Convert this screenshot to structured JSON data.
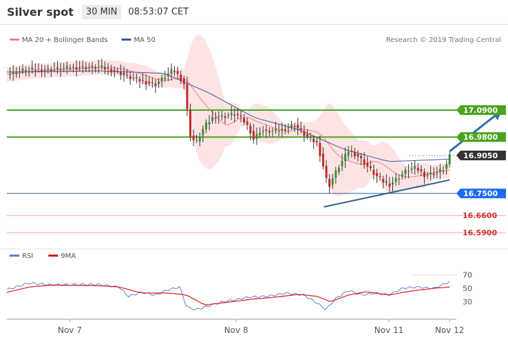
{
  "header": {
    "title": "Silver spot",
    "timeframe": "30 MIN",
    "time": "08:53:07 CET"
  },
  "source_note": "Research © 2019 Trading Central",
  "colors": {
    "ma20": "#f08080",
    "ma50": "#3b5998",
    "bollinger_fill": "#fde3e3",
    "candle_up": "#3a8f3a",
    "candle_down": "#c62828",
    "resistance": "#4aa31e",
    "support": "#2f5f8a",
    "target_line": "#f0a0a0",
    "arrow": "#2f6db5",
    "pivot_badge": "#1e6bf0",
    "current_badge": "#333333",
    "rsi": "#5b7fd6",
    "rsi_ma": "#d81b1b"
  },
  "chart_data": [
    {
      "type": "candlestick",
      "legend": [
        {
          "name": "MA 20 + Bollinger Bands",
          "color": "#f08080"
        },
        {
          "name": "MA 50",
          "color": "#3b5998"
        }
      ],
      "x_labels": [
        {
          "label": "Nov 7",
          "at": 0.14
        },
        {
          "label": "Nov 8",
          "at": 0.51
        },
        {
          "label": "Nov 11",
          "at": 0.85
        },
        {
          "label": "Nov 12",
          "at": 0.985
        }
      ],
      "ylim": [
        16.54,
        17.41
      ],
      "levels": [
        {
          "value": 17.09,
          "label": "17.0900",
          "kind": "resistance"
        },
        {
          "value": 16.98,
          "label": "16.9800",
          "kind": "resistance"
        },
        {
          "value": 16.905,
          "label": "16.9050",
          "kind": "current"
        },
        {
          "value": 16.75,
          "label": "16.7500",
          "kind": "pivot"
        },
        {
          "value": 16.66,
          "label": "16.6600",
          "kind": "target"
        },
        {
          "value": 16.59,
          "label": "16.5900",
          "kind": "target"
        }
      ],
      "trendline": {
        "from": [
          0.705,
          16.695
        ],
        "to": [
          0.985,
          16.805
        ]
      },
      "projection_arrow": {
        "from": [
          0.985,
          16.905
        ],
        "to": [
          1.1,
          17.085
        ]
      },
      "anchors": [
        [
          0.0,
          17.235
        ],
        [
          0.04,
          17.255
        ],
        [
          0.09,
          17.255
        ],
        [
          0.15,
          17.265
        ],
        [
          0.21,
          17.265
        ],
        [
          0.25,
          17.245
        ],
        [
          0.27,
          17.225
        ],
        [
          0.3,
          17.21
        ],
        [
          0.33,
          17.195
        ],
        [
          0.37,
          17.255
        ],
        [
          0.385,
          17.225
        ],
        [
          0.395,
          17.195
        ],
        [
          0.4,
          17.115
        ],
        [
          0.405,
          16.995
        ],
        [
          0.42,
          16.955
        ],
        [
          0.44,
          17.025
        ],
        [
          0.46,
          17.065
        ],
        [
          0.48,
          17.065
        ],
        [
          0.51,
          17.075
        ],
        [
          0.53,
          17.04
        ],
        [
          0.545,
          16.995
        ],
        [
          0.55,
          16.965
        ],
        [
          0.56,
          17.005
        ],
        [
          0.6,
          17.005
        ],
        [
          0.64,
          17.03
        ],
        [
          0.665,
          16.985
        ],
        [
          0.69,
          16.955
        ],
        [
          0.7,
          16.89
        ],
        [
          0.715,
          16.775
        ],
        [
          0.725,
          16.815
        ],
        [
          0.74,
          16.865
        ],
        [
          0.76,
          16.925
        ],
        [
          0.78,
          16.905
        ],
        [
          0.8,
          16.865
        ],
        [
          0.82,
          16.825
        ],
        [
          0.84,
          16.795
        ],
        [
          0.85,
          16.785
        ],
        [
          0.87,
          16.815
        ],
        [
          0.89,
          16.845
        ],
        [
          0.91,
          16.855
        ],
        [
          0.93,
          16.825
        ],
        [
          0.955,
          16.835
        ],
        [
          0.975,
          16.855
        ],
        [
          0.985,
          16.9
        ]
      ],
      "candle_count": 140,
      "ma50_anchors": [
        [
          0.0,
          17.245
        ],
        [
          0.2,
          17.25
        ],
        [
          0.35,
          17.24
        ],
        [
          0.45,
          17.16
        ],
        [
          0.55,
          17.06
        ],
        [
          0.65,
          17.01
        ],
        [
          0.75,
          16.93
        ],
        [
          0.85,
          16.88
        ],
        [
          0.985,
          16.89
        ]
      ]
    },
    {
      "type": "line",
      "legend": [
        {
          "name": "RSI",
          "color": "#5b7fd6"
        },
        {
          "name": "9MA",
          "color": "#d81b1b"
        }
      ],
      "ylim": [
        12,
        82
      ],
      "ticks": [
        70,
        50,
        30
      ],
      "overbought": 70,
      "rsi_anchors": [
        [
          0.0,
          48
        ],
        [
          0.05,
          58
        ],
        [
          0.1,
          55
        ],
        [
          0.2,
          56
        ],
        [
          0.25,
          52
        ],
        [
          0.27,
          38
        ],
        [
          0.3,
          44
        ],
        [
          0.33,
          40
        ],
        [
          0.36,
          48
        ],
        [
          0.385,
          52
        ],
        [
          0.4,
          22
        ],
        [
          0.42,
          18
        ],
        [
          0.45,
          24
        ],
        [
          0.48,
          30
        ],
        [
          0.51,
          33
        ],
        [
          0.54,
          37
        ],
        [
          0.58,
          38
        ],
        [
          0.62,
          43
        ],
        [
          0.66,
          40
        ],
        [
          0.69,
          28
        ],
        [
          0.71,
          18
        ],
        [
          0.73,
          34
        ],
        [
          0.76,
          47
        ],
        [
          0.79,
          40
        ],
        [
          0.82,
          43
        ],
        [
          0.85,
          40
        ],
        [
          0.88,
          50
        ],
        [
          0.91,
          52
        ],
        [
          0.95,
          50
        ],
        [
          0.985,
          60
        ]
      ],
      "ma_anchors": [
        [
          0.0,
          44
        ],
        [
          0.05,
          52
        ],
        [
          0.1,
          55
        ],
        [
          0.2,
          54
        ],
        [
          0.25,
          52
        ],
        [
          0.3,
          43
        ],
        [
          0.36,
          43
        ],
        [
          0.4,
          40
        ],
        [
          0.44,
          25
        ],
        [
          0.5,
          30
        ],
        [
          0.55,
          34
        ],
        [
          0.6,
          37
        ],
        [
          0.65,
          41
        ],
        [
          0.69,
          38
        ],
        [
          0.72,
          30
        ],
        [
          0.76,
          40
        ],
        [
          0.8,
          45
        ],
        [
          0.85,
          40
        ],
        [
          0.9,
          46
        ],
        [
          0.95,
          50
        ],
        [
          0.985,
          52
        ]
      ]
    }
  ]
}
